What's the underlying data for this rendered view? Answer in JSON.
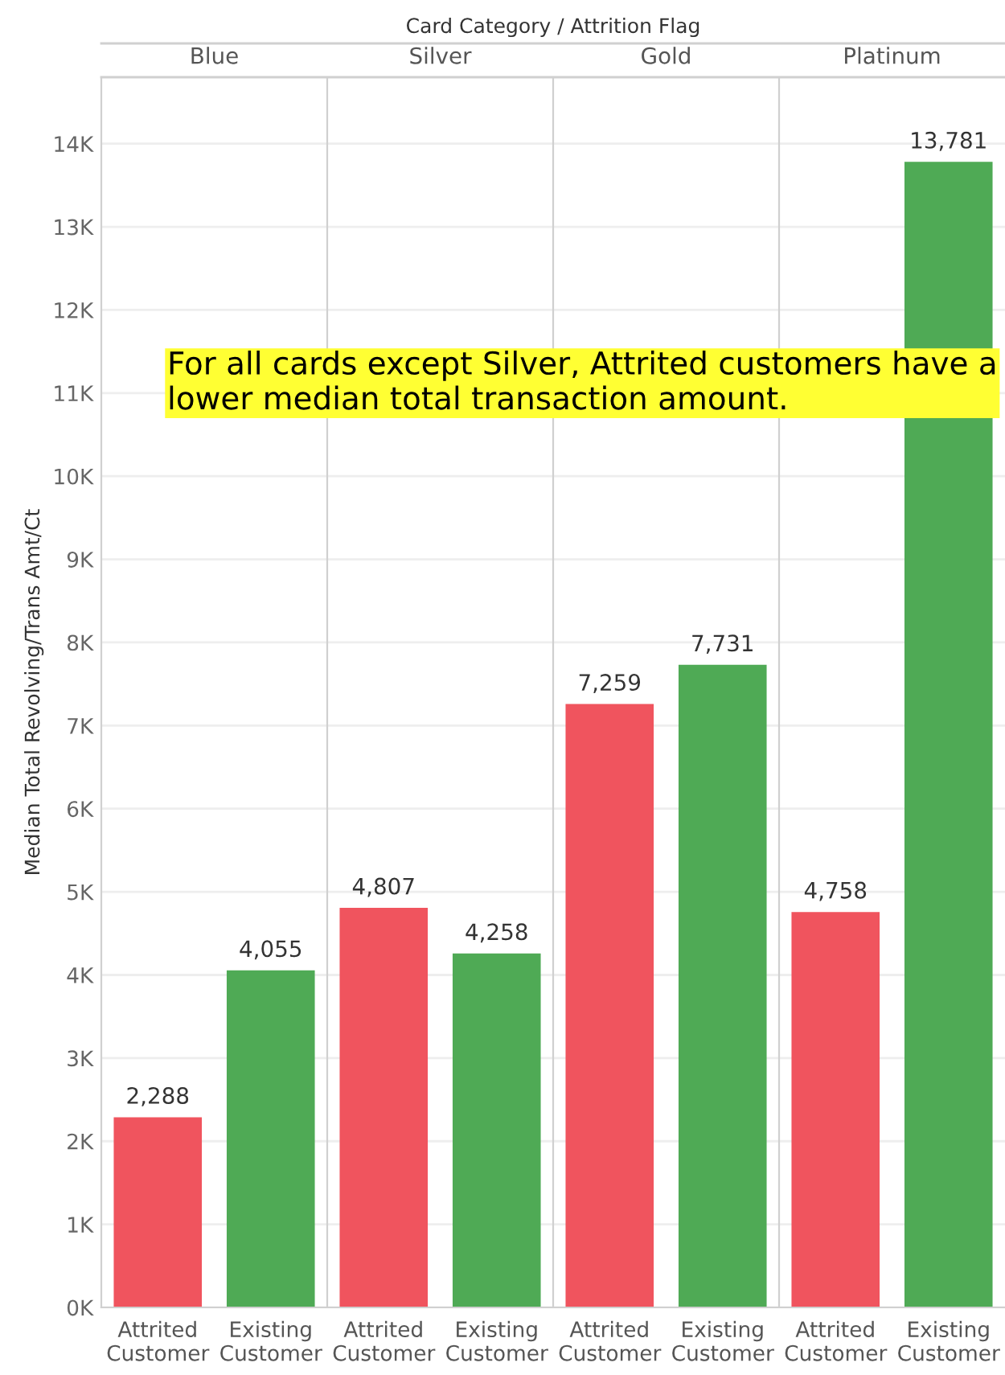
{
  "chart_data": [
    {
      "type": "bar",
      "title": "Blue",
      "ylabel": "Median Total Revolving/Trans Amt/Ct",
      "categories": [
        "Attrited Customer",
        "Existing Customer"
      ],
      "values": [
        2288,
        4055
      ],
      "value_labels": [
        "2,288",
        "4,055"
      ],
      "colors": [
        "#f0545e",
        "#4faa55"
      ],
      "ylim": [
        0,
        14800
      ],
      "yticks": [
        {
          "value": 0,
          "label": "0K"
        },
        {
          "value": 1000,
          "label": "1K"
        },
        {
          "value": 2000,
          "label": "2K"
        },
        {
          "value": 3000,
          "label": "3K"
        },
        {
          "value": 4000,
          "label": "4K"
        },
        {
          "value": 5000,
          "label": "5K"
        },
        {
          "value": 6000,
          "label": "6K"
        },
        {
          "value": 7000,
          "label": "7K"
        },
        {
          "value": 8000,
          "label": "8K"
        },
        {
          "value": 9000,
          "label": "9K"
        },
        {
          "value": 10000,
          "label": "10K"
        },
        {
          "value": 11000,
          "label": "11K"
        },
        {
          "value": 12000,
          "label": "12K"
        },
        {
          "value": 13000,
          "label": "13K"
        },
        {
          "value": 14000,
          "label": "14K"
        }
      ],
      "grid": "y",
      "annotations": [
        "Card Category / Attrition Flag",
        "For all cards except Silver, Attrited customers have a lower median total transaction amount."
      ]
    },
    {
      "type": "bar",
      "title": "Silver",
      "categories": [
        "Attrited Customer",
        "Existing Customer"
      ],
      "values": [
        4807,
        4258
      ],
      "value_labels": [
        "4,807",
        "4,258"
      ],
      "colors": [
        "#f0545e",
        "#4faa55"
      ],
      "ylim": [
        0,
        14800
      ],
      "tick_labels": "x",
      "grid": "y"
    },
    {
      "type": "bar",
      "title": "Gold",
      "categories": [
        "Attrited Customer",
        "Existing Customer"
      ],
      "values": [
        7259,
        7731
      ],
      "value_labels": [
        "7,259",
        "7,731"
      ],
      "colors": [
        "#f0545e",
        "#4faa55"
      ],
      "ylim": [
        0,
        14800
      ],
      "tick_labels": "x",
      "grid": "y"
    },
    {
      "type": "bar",
      "title": "Platinum",
      "categories": [
        "Attrited Customer",
        "Existing Customer"
      ],
      "values": [
        4758,
        13781
      ],
      "value_labels": [
        "4,758",
        "13,781"
      ],
      "colors": [
        "#f0545e",
        "#4faa55"
      ],
      "ylim": [
        0,
        14800
      ],
      "tick_labels": "x",
      "grid": "y"
    }
  ]
}
